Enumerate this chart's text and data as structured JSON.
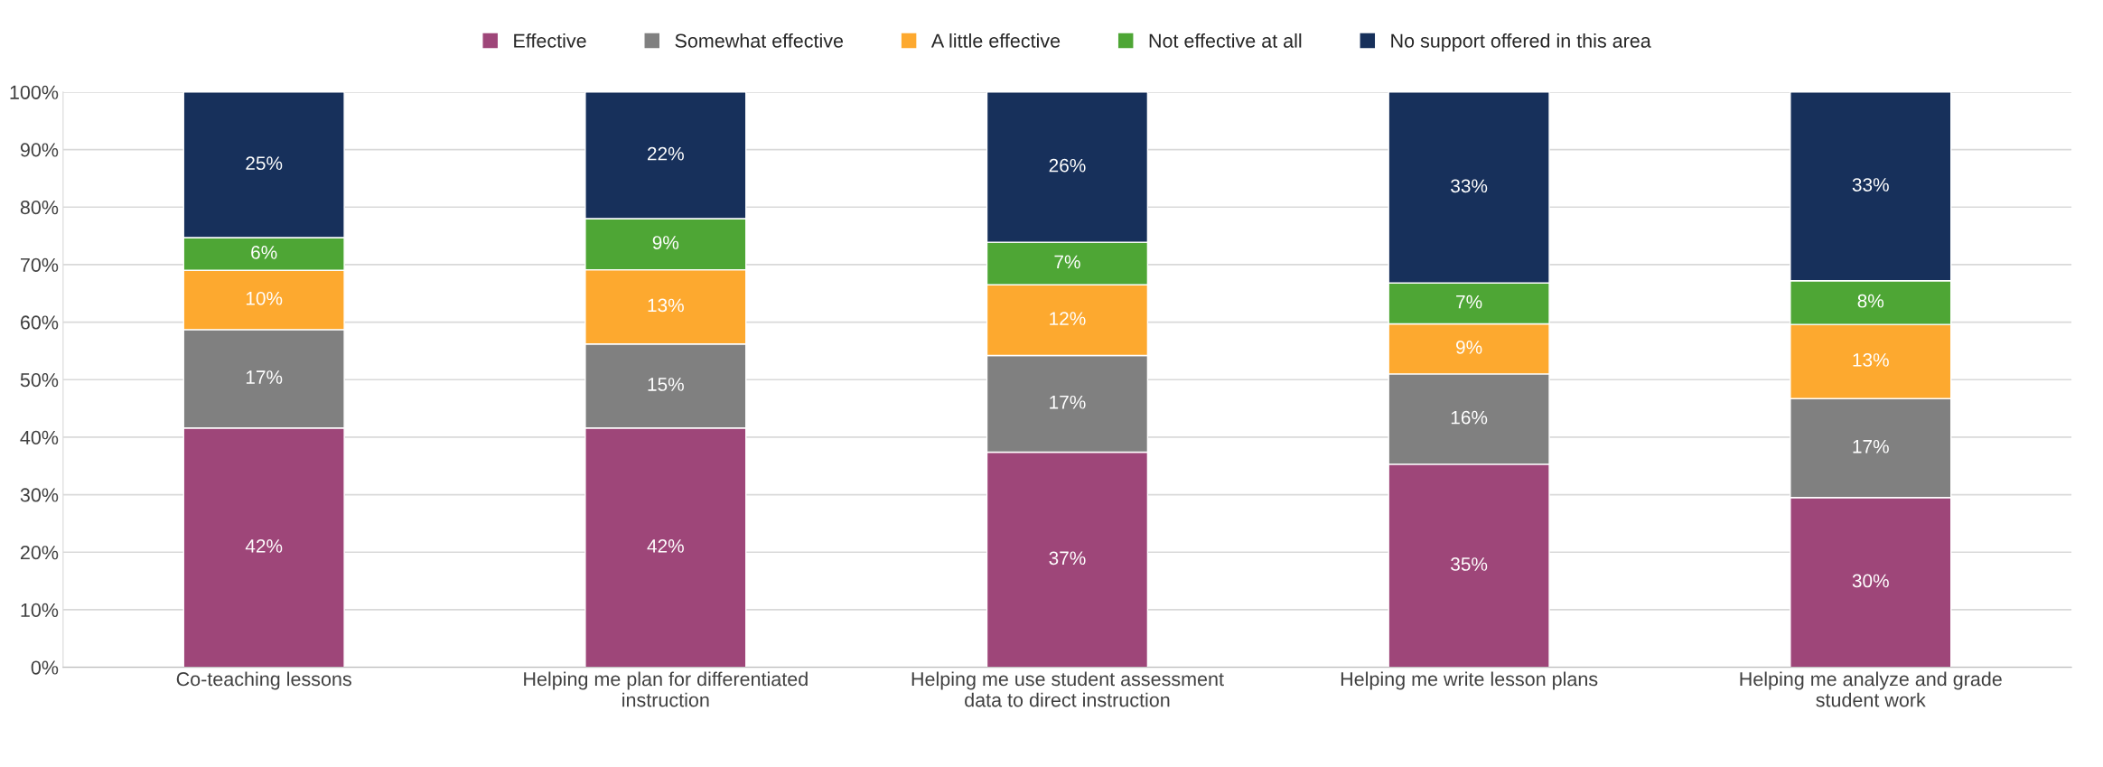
{
  "chart_data": {
    "type": "bar",
    "stacked": true,
    "categories": [
      "Co-teaching lessons",
      "Helping me plan for differentiated instruction",
      "Helping me use student assessment data to direct instruction",
      "Helping me write lesson plans",
      "Helping me analyze and grade student work"
    ],
    "series": [
      {
        "name": "Effective",
        "color": "#9e4679",
        "values": [
          41.6,
          41.6,
          37.4,
          35.3,
          29.5
        ],
        "value_labels": [
          "42%",
          "42%",
          "37%",
          "35%",
          "30%"
        ]
      },
      {
        "name": "Somewhat effective",
        "color": "#808080",
        "values": [
          17.1,
          14.6,
          16.8,
          15.7,
          17.2
        ],
        "value_labels": [
          "17%",
          "15%",
          "17%",
          "16%",
          "17%"
        ]
      },
      {
        "name": "A little effective",
        "color": "#fda92f",
        "values": [
          10.3,
          12.9,
          12.3,
          8.7,
          12.9
        ],
        "value_labels": [
          "10%",
          "13%",
          "12%",
          "9%",
          "13%"
        ]
      },
      {
        "name": "Not effective at all",
        "color": "#4ea635",
        "values": [
          5.7,
          8.9,
          7.4,
          7.1,
          7.6
        ],
        "value_labels": [
          "6%",
          "9%",
          "7%",
          "7%",
          "8%"
        ]
      },
      {
        "name": "No support offered in this area",
        "color": "#17305b",
        "values": [
          25.3,
          22.0,
          26.1,
          33.2,
          32.8
        ],
        "value_labels": [
          "25%",
          "22%",
          "26%",
          "33%",
          "33%"
        ]
      }
    ],
    "ylim": [
      0,
      100
    ],
    "yticks": [
      {
        "value": 0,
        "label": "0%"
      },
      {
        "value": 10,
        "label": "10%"
      },
      {
        "value": 20,
        "label": "20%"
      },
      {
        "value": 30,
        "label": "30%"
      },
      {
        "value": 40,
        "label": "40%"
      },
      {
        "value": 50,
        "label": "50%"
      },
      {
        "value": 60,
        "label": "60%"
      },
      {
        "value": 70,
        "label": "70%"
      },
      {
        "value": 80,
        "label": "80%"
      },
      {
        "value": 90,
        "label": "90%"
      },
      {
        "value": 100,
        "label": "100%"
      }
    ],
    "grid": "y",
    "legend": "top"
  }
}
